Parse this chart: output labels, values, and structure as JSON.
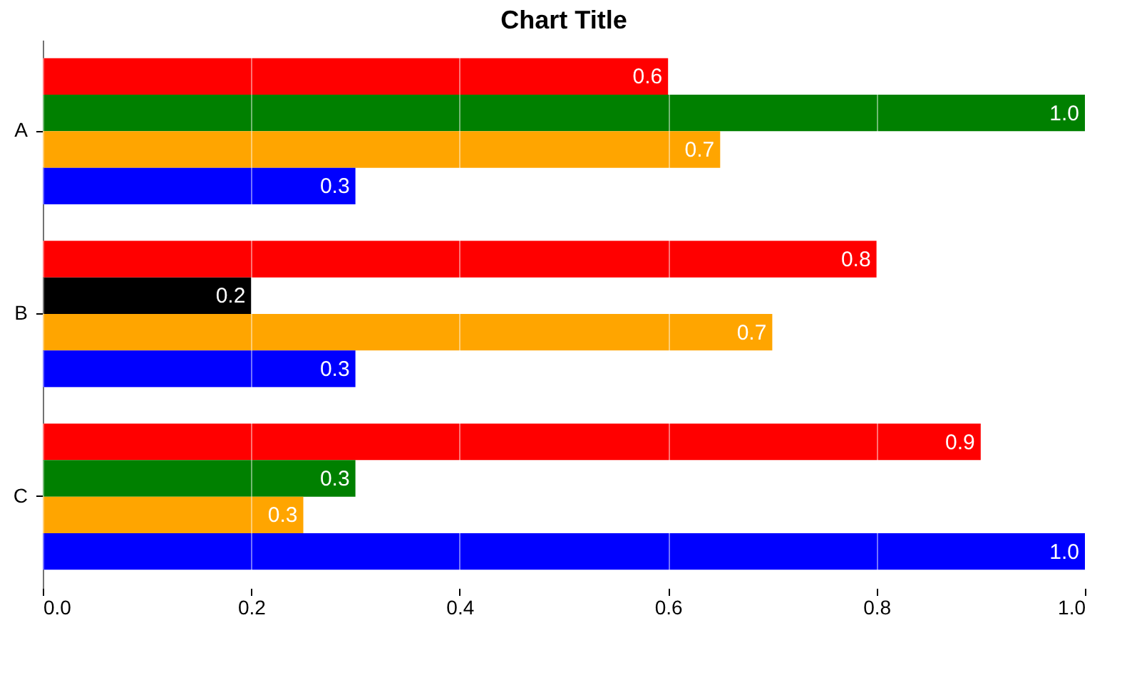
{
  "chart_data": {
    "type": "bar",
    "orientation": "horizontal",
    "title": "Chart Title",
    "categories": [
      "A",
      "B",
      "C"
    ],
    "series": [
      {
        "color": "#ff0000",
        "values": [
          0.6,
          0.8,
          0.9
        ],
        "value_labels": [
          "0.6",
          "0.8",
          "0.9"
        ]
      },
      {
        "colors": [
          "#008000",
          "#000000",
          "#008000"
        ],
        "values": [
          1.0,
          0.2,
          0.3
        ],
        "value_labels": [
          "1.0",
          "0.2",
          "0.3"
        ]
      },
      {
        "color": "#ffa500",
        "values": [
          0.65,
          0.7,
          0.25
        ],
        "value_labels": [
          "0.7",
          "0.7",
          "0.3"
        ]
      },
      {
        "color": "#0000ff",
        "values": [
          0.3,
          0.3,
          1.0
        ],
        "value_labels": [
          "0.3",
          "0.3",
          "1.0"
        ]
      }
    ],
    "xlim": [
      0,
      1
    ],
    "xticks": [
      {
        "value": 0,
        "label": "0.0"
      },
      {
        "value": 0.2,
        "label": "0.2"
      },
      {
        "value": 0.4,
        "label": "0.4"
      },
      {
        "value": 0.6,
        "label": "0.6"
      },
      {
        "value": 0.8,
        "label": "0.8"
      },
      {
        "value": 1,
        "label": "1.0"
      }
    ],
    "grid": "x"
  }
}
